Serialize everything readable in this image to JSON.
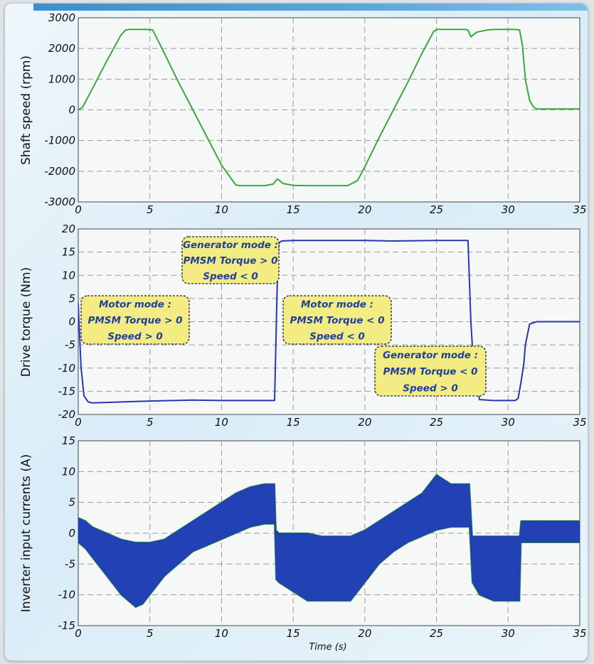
{
  "colors": {
    "speed_line": "#3aa83a",
    "torque_line": "#2a35b5",
    "current_fill": "#1f3fb0",
    "current_edge": "#2e9e3a",
    "annotation_fill": "#f3ec83",
    "annotation_text": "#1f3f9c",
    "grid": "#9a9a9a"
  },
  "chart_data": [
    {
      "type": "line",
      "ylabel": "Shaft speed (rpm)",
      "xlabel": "",
      "xlim": [
        0,
        35
      ],
      "ylim": [
        -3000,
        3000
      ],
      "xticks": [
        0,
        5,
        10,
        15,
        20,
        25,
        30,
        35
      ],
      "yticks": [
        -3000,
        -2000,
        -1000,
        0,
        1000,
        2000,
        3000
      ],
      "grid": true,
      "series": [
        {
          "x": [
            0,
            0.3,
            1,
            2,
            3,
            3.3,
            3.6,
            4,
            4.8,
            5.2,
            6,
            7,
            8,
            9,
            10,
            11,
            11.3,
            12,
            13,
            13.6,
            13.9,
            14.3,
            15,
            16,
            17,
            18,
            18.8,
            19.5,
            20,
            21,
            22,
            23,
            24,
            24.8,
            25,
            26,
            27,
            27.2,
            27.4,
            27.8,
            28.5,
            29,
            30,
            30.5,
            30.8,
            31,
            31.2,
            31.5,
            31.8,
            32,
            33,
            34,
            35
          ],
          "values": [
            0,
            80,
            700,
            1600,
            2450,
            2600,
            2620,
            2620,
            2620,
            2600,
            1850,
            900,
            0,
            -900,
            -1800,
            -2450,
            -2470,
            -2470,
            -2470,
            -2420,
            -2250,
            -2400,
            -2460,
            -2470,
            -2470,
            -2470,
            -2470,
            -2300,
            -1850,
            -900,
            0,
            900,
            1850,
            2550,
            2620,
            2620,
            2620,
            2600,
            2380,
            2530,
            2600,
            2620,
            2620,
            2620,
            2600,
            2100,
            1000,
            300,
            80,
            30,
            30,
            30,
            30
          ]
        }
      ]
    },
    {
      "type": "line",
      "ylabel": "Drive torque (Nm)",
      "xlabel": "",
      "xlim": [
        0,
        35
      ],
      "ylim": [
        -20,
        20
      ],
      "xticks": [
        0,
        5,
        10,
        15,
        20,
        25,
        30,
        35
      ],
      "yticks": [
        -20,
        -15,
        -10,
        -5,
        0,
        5,
        10,
        15,
        20
      ],
      "grid": true,
      "series": [
        {
          "x": [
            0,
            0.05,
            0.2,
            0.4,
            0.7,
            1,
            3,
            5,
            8,
            10,
            12,
            13.5,
            13.7,
            13.9,
            14,
            14.2,
            15,
            18,
            20,
            22,
            25,
            27.2,
            27.4,
            27.6,
            28,
            29,
            30,
            30.5,
            30.7,
            30.9,
            31,
            31.1,
            31.2,
            31.5,
            32,
            35
          ],
          "values": [
            4,
            0,
            -10,
            -16,
            -17.3,
            -17.5,
            -17.3,
            -17.1,
            -16.9,
            -17.0,
            -17.0,
            -17.0,
            -17.0,
            10,
            17,
            17.4,
            17.5,
            17.5,
            17.5,
            17.4,
            17.5,
            17.5,
            0,
            -10,
            -16.8,
            -17.0,
            -17.0,
            -17.0,
            -16.5,
            -13,
            -11,
            -9,
            -5,
            -0.5,
            0,
            0
          ]
        }
      ],
      "annotations": [
        {
          "id": "motor-mode-1",
          "lines": [
            "Motor mode :",
            "PMSM Torque > 0",
            "Speed > 0"
          ]
        },
        {
          "id": "generator-mode-1",
          "lines": [
            "Generator mode :",
            "PMSM Torque > 0",
            "Speed < 0"
          ]
        },
        {
          "id": "motor-mode-2",
          "lines": [
            "Motor mode :",
            "PMSM Torque < 0",
            "Speed < 0"
          ]
        },
        {
          "id": "generator-mode-2",
          "lines": [
            "Generator mode :",
            "PMSM Torque < 0",
            "Speed > 0"
          ]
        }
      ]
    },
    {
      "type": "area",
      "ylabel": "Inverter input currents (A)",
      "xlabel": "Time (s)",
      "xlim": [
        0,
        35
      ],
      "ylim": [
        -15,
        15
      ],
      "xticks": [
        0,
        5,
        10,
        15,
        20,
        25,
        30,
        35
      ],
      "yticks": [
        -15,
        -10,
        -5,
        0,
        5,
        10,
        15
      ],
      "grid": true,
      "series": [
        {
          "x": [
            0,
            0.5,
            1,
            2,
            3,
            4,
            4.5,
            5,
            6,
            7,
            8,
            9,
            10,
            11,
            12,
            13,
            13.7,
            13.8,
            14,
            15,
            16,
            17,
            18,
            19,
            20,
            21,
            22,
            23,
            24,
            25,
            26,
            27,
            27.3,
            27.5,
            28,
            29,
            30,
            30.8,
            30.9,
            31,
            32,
            33,
            34,
            35
          ],
          "upper": [
            2.5,
            2.0,
            1.0,
            0.0,
            -1.0,
            -1.5,
            -1.5,
            -1.5,
            -1.0,
            0.5,
            2.0,
            3.5,
            5.0,
            6.5,
            7.5,
            8.0,
            8.0,
            0.5,
            0.0,
            0.0,
            0.0,
            -0.5,
            -0.5,
            -0.5,
            0.5,
            2.0,
            3.5,
            5.0,
            6.5,
            9.5,
            8.0,
            8.0,
            8.0,
            -0.5,
            -0.5,
            -0.5,
            -0.5,
            -0.5,
            2.0,
            2.0,
            2.0,
            2.0,
            2.0,
            2.0
          ],
          "lower": [
            -1.5,
            -2.5,
            -4.0,
            -7.0,
            -10.0,
            -12.0,
            -11.5,
            -10.0,
            -7.0,
            -5.0,
            -3.0,
            -2.0,
            -1.0,
            0.0,
            1.0,
            1.5,
            1.5,
            -7.5,
            -8.0,
            -9.5,
            -11.0,
            -11.0,
            -11.0,
            -11.0,
            -8.0,
            -5.0,
            -3.0,
            -1.5,
            -0.5,
            0.5,
            1.0,
            1.0,
            1.0,
            -8.0,
            -10.0,
            -11.0,
            -11.0,
            -11.0,
            -1.5,
            -1.5,
            -1.5,
            -1.5,
            -1.5,
            -1.5
          ]
        }
      ]
    }
  ]
}
